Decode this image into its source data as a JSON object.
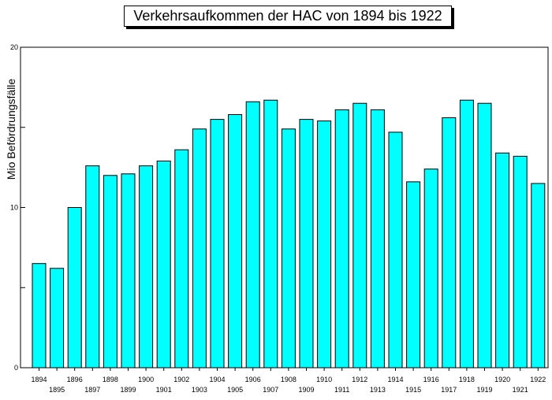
{
  "chart_data": {
    "type": "bar",
    "title": "Verkehrsaufkommen der HAC von 1894 bis 1922",
    "ylabel": "Mio Befördrungsfälle",
    "xlabel": "",
    "ylim": [
      0,
      20
    ],
    "yticks": [
      0,
      5,
      10,
      15,
      20
    ],
    "ytick_labels": [
      "0",
      "",
      "10",
      "",
      "20"
    ],
    "grid": false,
    "legend": "none",
    "bar_color": "#00FFFF",
    "bar_edge_color": "#000000",
    "categories": [
      "1894",
      "1895",
      "1896",
      "1897",
      "1898",
      "1899",
      "1900",
      "1901",
      "1902",
      "1903",
      "1904",
      "1905",
      "1906",
      "1907",
      "1908",
      "1909",
      "1910",
      "1911",
      "1912",
      "1913",
      "1914",
      "1915",
      "1916",
      "1917",
      "1918",
      "1919",
      "1920",
      "1921",
      "1922"
    ],
    "values": [
      6.5,
      6.2,
      10.0,
      12.6,
      12.0,
      12.1,
      12.6,
      12.9,
      13.6,
      14.9,
      15.5,
      15.8,
      16.6,
      16.7,
      14.9,
      15.5,
      15.4,
      16.1,
      16.5,
      16.1,
      14.7,
      11.6,
      12.4,
      15.6,
      16.7,
      16.5,
      13.4,
      13.2,
      11.5
    ]
  }
}
